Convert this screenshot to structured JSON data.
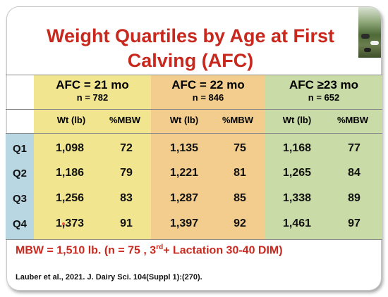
{
  "title_line1": "Weight Quartiles by Age at First",
  "title_line2": "Calving (AFC)",
  "groups": [
    {
      "label": "AFC = 21 mo",
      "n": "n = 782"
    },
    {
      "label": "AFC = 22 mo",
      "n": "n = 846"
    },
    {
      "label": "AFC ≥23 mo",
      "n": "n = 652"
    }
  ],
  "subheaders": [
    "Wt (lb)",
    "%MBW",
    "Wt (lb)",
    "%MBW",
    "Wt (lb)",
    "%MBW"
  ],
  "rows": [
    {
      "q": "Q1",
      "cells": [
        "1,098",
        "72",
        "1,135",
        "75",
        "1,168",
        "77"
      ]
    },
    {
      "q": "Q2",
      "cells": [
        "1,186",
        "79",
        "1,221",
        "81",
        "1,265",
        "84"
      ]
    },
    {
      "q": "Q3",
      "cells": [
        "1,256",
        "83",
        "1,287",
        "85",
        "1,338",
        "89"
      ]
    },
    {
      "q": "Q4",
      "cells": [
        "1,373",
        "91",
        "1,397",
        "92",
        "1,461",
        "97"
      ]
    }
  ],
  "mbw_text_before": "MBW = 1,510 lb. (n = 75 , 3",
  "mbw_sup": "rd",
  "mbw_text_after": "+ Lactation 30-40 DIM)",
  "citation": "Lauber et al., 2021. J. Dairy Sci. 104(Suppl 1):(270).",
  "colors": {
    "title": "#c8281d",
    "col_21": "#f2e58f",
    "col_22": "#f2cd8d",
    "col_23": "#c9dba6",
    "quartile_col": "#b9d7e3"
  }
}
